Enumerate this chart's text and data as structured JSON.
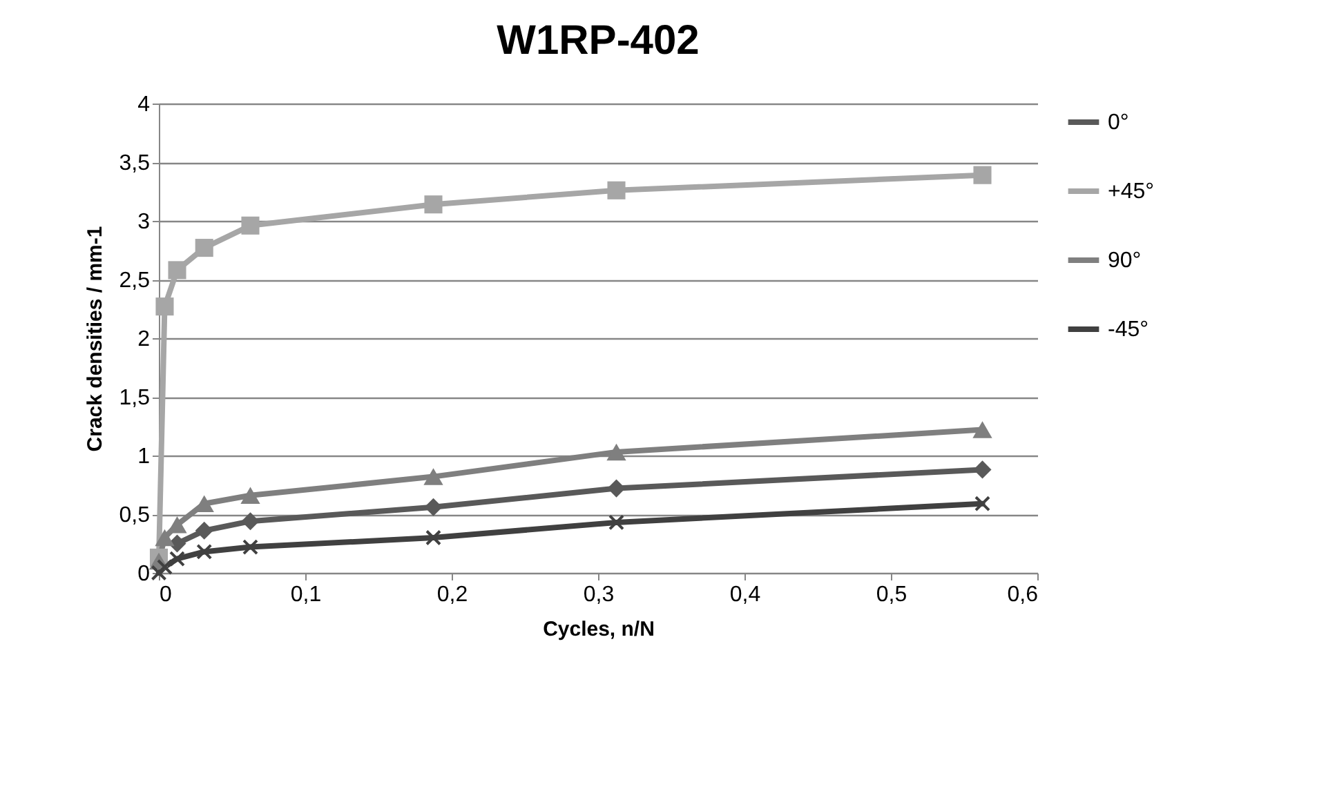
{
  "chart_data": {
    "type": "line",
    "title": "W1RP-402",
    "xlabel": "Cycles, n/N",
    "ylabel": "Crack densities / mm-1",
    "x": [
      0,
      0.004,
      0.0125,
      0.031,
      0.0625,
      0.1875,
      0.3125,
      0.5625
    ],
    "series": [
      {
        "name": "0°",
        "color": "#595959",
        "marker": "diamond",
        "values": [
          null,
          null,
          0.25,
          0.36,
          0.44,
          0.56,
          0.72,
          0.88
        ]
      },
      {
        "name": "+45°",
        "color": "#a6a6a6",
        "marker": "square",
        "values": [
          0.13,
          2.27,
          2.58,
          2.77,
          2.96,
          3.14,
          3.26,
          3.39
        ]
      },
      {
        "name": "90°",
        "color": "#7f7f7f",
        "marker": "triangle",
        "values": [
          0.1,
          0.3,
          0.41,
          0.59,
          0.66,
          0.82,
          1.03,
          1.22
        ]
      },
      {
        "name": "-45°",
        "color": "#404040",
        "marker": "cross",
        "values": [
          0,
          0.05,
          0.12,
          0.18,
          0.22,
          0.3,
          0.43,
          0.59
        ]
      }
    ],
    "xlim": [
      0,
      0.6
    ],
    "xticks": [
      0,
      {
        "value": 0.1,
        "label": "0,1"
      },
      {
        "value": 0.2,
        "label": "0,2"
      },
      {
        "value": 0.3,
        "label": "0,3"
      },
      {
        "value": 0.4,
        "label": "0,4"
      },
      {
        "value": 0.5,
        "label": "0,5"
      },
      {
        "value": 0.6,
        "label": "0,6"
      }
    ],
    "ylim": [
      0,
      4
    ],
    "yticks": [
      0,
      {
        "value": 0.5,
        "label": "0,5"
      },
      1,
      {
        "value": 1.5,
        "label": "1,5"
      },
      2,
      {
        "value": 2.5,
        "label": "2,5"
      },
      3,
      {
        "value": 3.5,
        "label": "3,5"
      },
      4
    ],
    "grid": "y",
    "legend": "right",
    "line_style": "solid"
  }
}
